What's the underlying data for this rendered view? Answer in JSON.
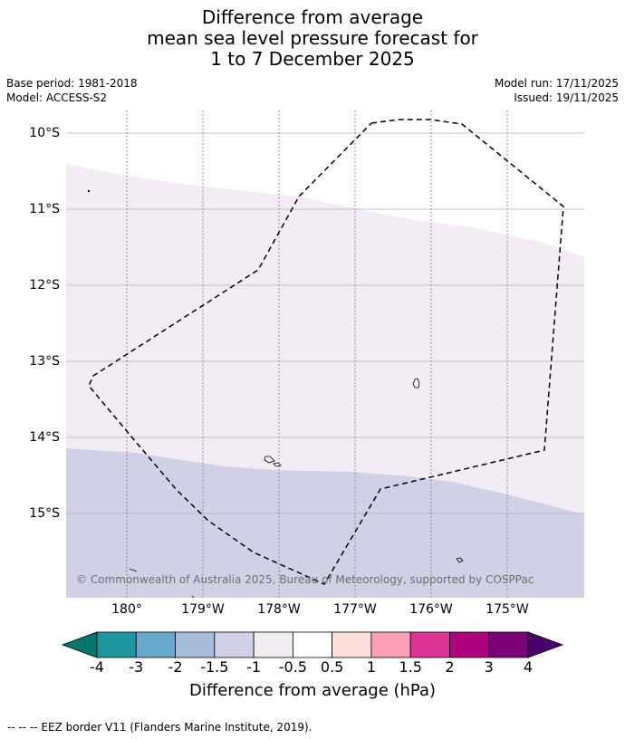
{
  "header": {
    "title_line1": "Difference from average",
    "title_line2": "mean sea level pressure forecast for",
    "title_line3": "1 to 7 December 2025",
    "base_period": "Base period: 1981-2018",
    "model": "Model: ACCESS-S2",
    "model_run": "Model run: 17/11/2025",
    "issued": "Issued: 19/11/2025"
  },
  "map": {
    "lat_labels": [
      "10°S",
      "11°S",
      "12°S",
      "13°S",
      "14°S",
      "15°S"
    ],
    "lon_labels": [
      "180°",
      "179°W",
      "178°W",
      "177°W",
      "176°W",
      "175°W"
    ],
    "copyright": "© Commonwealth of Australia 2025, Bureau of Meteorology, supported by COSPPac",
    "colors": {
      "band_neg_0_5": "#f3ecf5",
      "band_neg_1_5": "#d0d1e6"
    }
  },
  "colorbar": {
    "labels": [
      "-4",
      "-3",
      "-2",
      "-1.5",
      "-1",
      "-0.5",
      "0.5",
      "1",
      "1.5",
      "2",
      "3",
      "4"
    ],
    "colors": [
      "#04776b",
      "#1f959f",
      "#67a9cf",
      "#a6bddb",
      "#d0d1e6",
      "#f3ecf5",
      "#ffffff",
      "#fde0dd",
      "#fa9fb5",
      "#dd3497",
      "#ae017e",
      "#7a0177",
      "#49006a"
    ],
    "title": "Difference from average (hPa)"
  },
  "footer": {
    "legend": "--  --  -- EEZ border V11 (Flanders Marine Institute, 2019)."
  }
}
